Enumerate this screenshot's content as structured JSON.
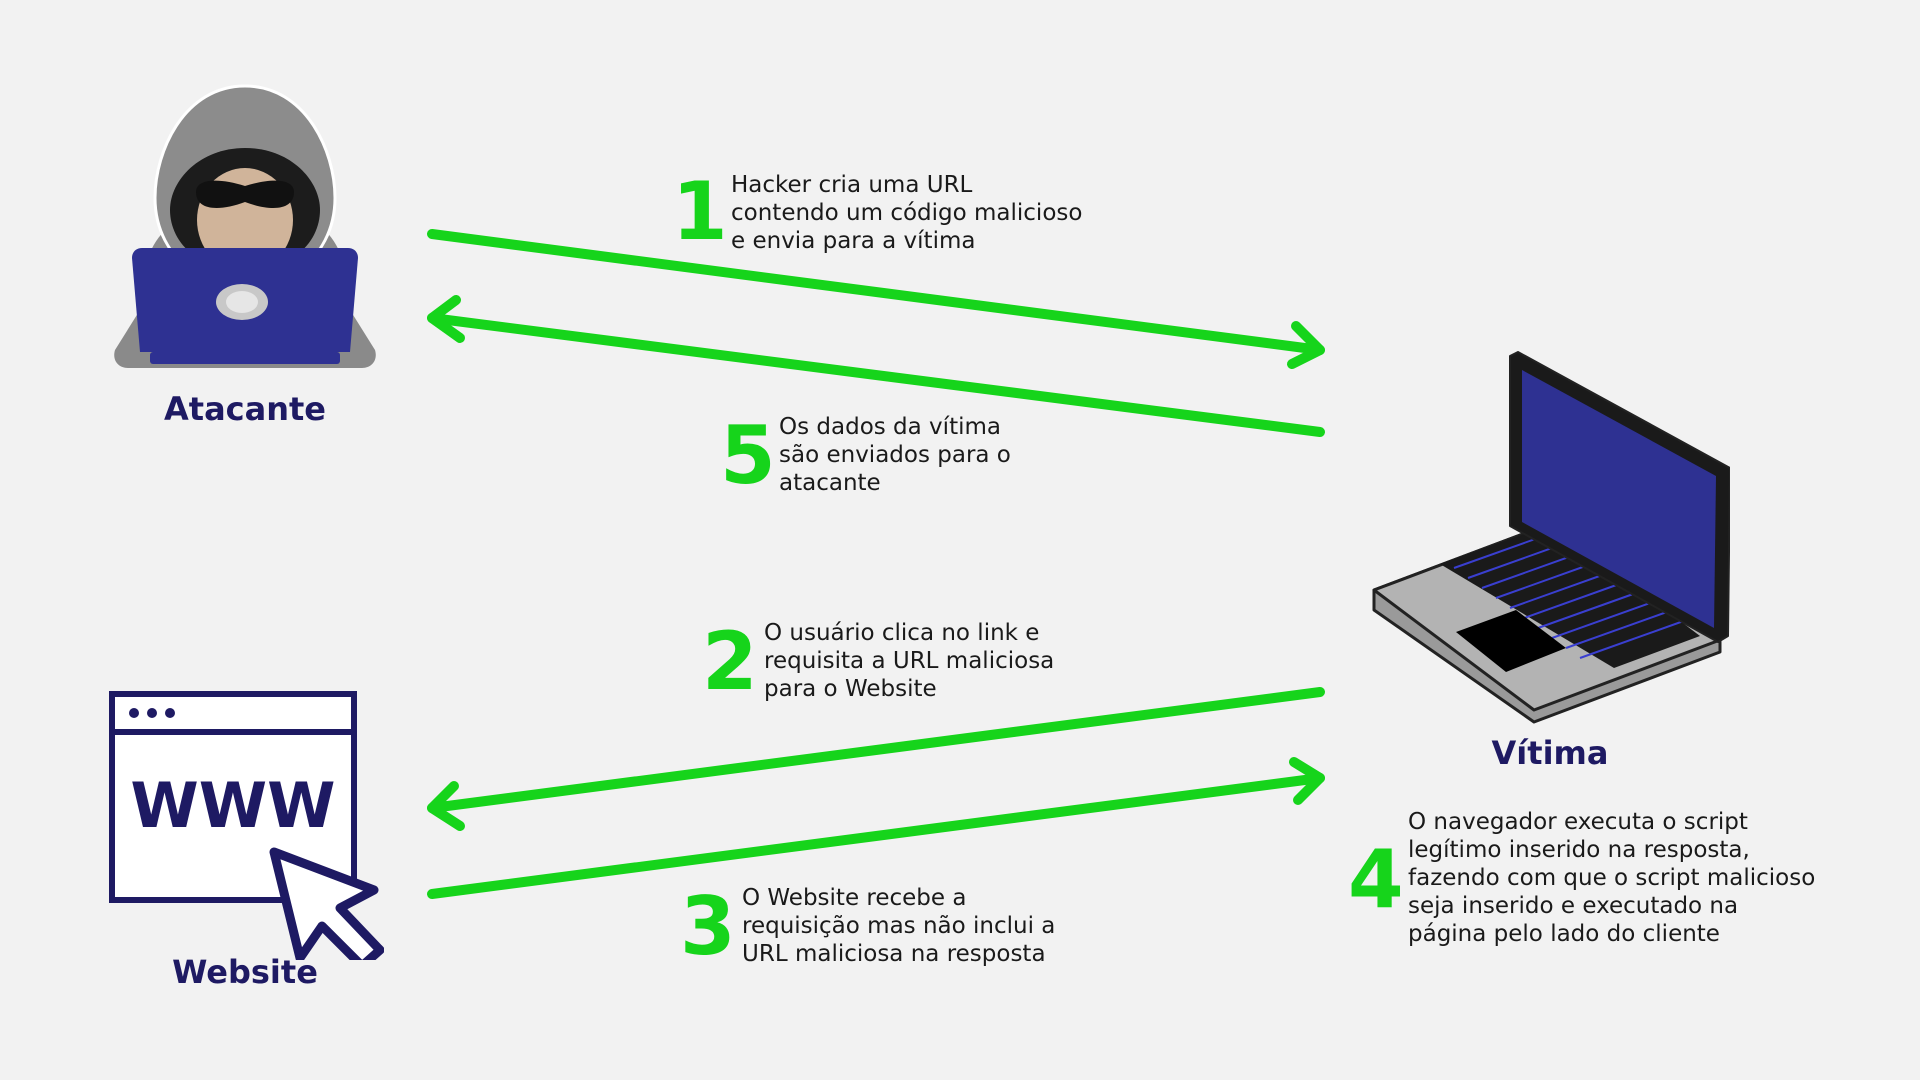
{
  "colors": {
    "background": "#f2f2f2",
    "arrow": "#16d41b",
    "actor_label": "#1e1a63",
    "text": "#1a1a1a"
  },
  "actors": {
    "attacker": {
      "label": "Atacante",
      "icon": "hooded-hacker-icon"
    },
    "victim": {
      "label": "Vítima",
      "icon": "laptop-icon"
    },
    "website": {
      "label": "Website",
      "icon": "www-browser-window-icon"
    }
  },
  "steps": {
    "step1": {
      "number": "1",
      "text": "Hacker cria uma URL\ncontendo um código malicioso\ne envia para a vítima"
    },
    "step2": {
      "number": "2",
      "text": "O usuário clica no link e\nrequisita a URL maliciosa\npara o Website"
    },
    "step3": {
      "number": "3",
      "text": "O Website recebe a\nrequisição mas não inclui a\nURL maliciosa na resposta"
    },
    "step4": {
      "number": "4",
      "text": "O navegador executa o script\nlegítimo inserido na resposta,\nfazendo com que o script malicioso\nseja inserido e executado na\npágina pelo lado do cliente"
    },
    "step5": {
      "number": "5",
      "text": "Os dados da vítima\nsão enviados para o\natacante"
    }
  },
  "website_icon_text": "WWW"
}
